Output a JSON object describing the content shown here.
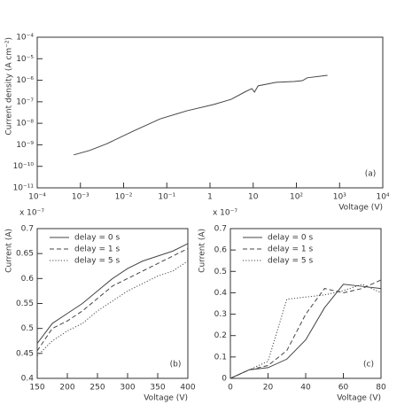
{
  "chart_data": [
    {
      "type": "line",
      "title": "",
      "x_label": "Voltage (V)",
      "y_label": "Current density (A cm⁻²)",
      "annotation": "(a)",
      "log_x": true,
      "log_y": true,
      "xlim": [
        0.0001,
        10000
      ],
      "ylim": [
        1e-11,
        0.0001
      ],
      "xticks": [
        {
          "value": 0.0001,
          "label": "10⁻⁴"
        },
        {
          "value": 0.001,
          "label": "10⁻³"
        },
        {
          "value": 0.01,
          "label": "10⁻²"
        },
        {
          "value": 0.1,
          "label": "10⁻¹"
        },
        1,
        10,
        {
          "value": 100,
          "label": "10²"
        },
        {
          "value": 1000,
          "label": "10³"
        },
        {
          "value": 10000,
          "label": "10⁴"
        }
      ],
      "yticks": [
        {
          "value": 1e-11,
          "label": "10⁻¹¹"
        },
        {
          "value": 1e-10,
          "label": "10⁻¹⁰"
        },
        {
          "value": 1e-09,
          "label": "10⁻⁹"
        },
        {
          "value": 1e-08,
          "label": "10⁻⁸"
        },
        {
          "value": 1e-07,
          "label": "10⁻⁷"
        },
        {
          "value": 1e-06,
          "label": "10⁻⁶"
        },
        {
          "value": 1e-05,
          "label": "10⁻⁵"
        },
        {
          "value": 0.0001,
          "label": "10⁻⁴"
        }
      ],
      "x": [
        0.0007,
        0.0016,
        0.004,
        0.017,
        0.07,
        0.29,
        1.2,
        3.1,
        6.3,
        9.3,
        10.7,
        13,
        34,
        87,
        138,
        178,
        525
      ],
      "series": [
        {
          "color": "#444444",
          "dash": "solid",
          "values": [
            3.4e-10,
            5.4e-10,
            1.1e-09,
            4.4e-09,
            1.6e-08,
            3.8e-08,
            7.4e-08,
            1.3e-07,
            2.8e-07,
            4.1e-07,
            2.8e-07,
            5.5e-07,
            8e-07,
            8.7e-07,
            9.6e-07,
            1.3e-06,
            1.7e-06
          ]
        }
      ]
    },
    {
      "type": "line",
      "x_label": "Voltage (V)",
      "y_label": "Current (A)",
      "annotation": "(b)",
      "y_multiplier": "x 10⁻⁷",
      "legend": "upper left",
      "xlim": [
        150,
        400
      ],
      "ylim": [
        0.4,
        0.7
      ],
      "xticks": [
        150,
        200,
        250,
        300,
        350,
        400
      ],
      "yticks": [
        0.4,
        0.45,
        0.5,
        0.55,
        0.6,
        0.65,
        0.7
      ],
      "x": [
        150,
        175,
        200,
        225,
        250,
        275,
        300,
        325,
        350,
        375,
        400
      ],
      "series": [
        {
          "name": "delay = 0 s",
          "color": "#444444",
          "dash": "solid",
          "values": [
            0.47,
            0.51,
            0.53,
            0.55,
            0.575,
            0.6,
            0.62,
            0.635,
            0.645,
            0.655,
            0.67
          ]
        },
        {
          "name": "delay = 1 s",
          "color": "#444444",
          "dash": "dashed",
          "values": [
            0.455,
            0.5,
            0.515,
            0.535,
            0.56,
            0.585,
            0.6,
            0.615,
            0.63,
            0.645,
            0.66
          ]
        },
        {
          "name": "delay = 5 s",
          "color": "#444444",
          "dash": "dotted",
          "values": [
            0.445,
            0.475,
            0.495,
            0.51,
            0.535,
            0.555,
            0.575,
            0.59,
            0.605,
            0.615,
            0.635
          ]
        }
      ]
    },
    {
      "type": "line",
      "x_label": "Voltage (V)",
      "y_label": "Current (A)",
      "annotation": "(c)",
      "y_multiplier": "x 10⁻⁷",
      "legend": "upper left",
      "xlim": [
        0,
        80
      ],
      "ylim": [
        0,
        0.7
      ],
      "xticks": [
        0,
        20,
        40,
        60,
        80
      ],
      "yticks": [
        0,
        0.1,
        0.2,
        0.3,
        0.4,
        0.5,
        0.6,
        0.7
      ],
      "x": [
        0,
        10,
        20,
        30,
        40,
        50,
        60,
        70,
        80
      ],
      "series": [
        {
          "name": "delay = 0 s",
          "color": "#444444",
          "dash": "solid",
          "values": [
            0,
            0.04,
            0.05,
            0.09,
            0.18,
            0.33,
            0.44,
            0.43,
            0.42
          ]
        },
        {
          "name": "delay = 1 s",
          "color": "#444444",
          "dash": "dashed",
          "values": [
            0,
            0.04,
            0.06,
            0.13,
            0.3,
            0.42,
            0.4,
            0.42,
            0.46
          ]
        },
        {
          "name": "delay = 5 s",
          "color": "#444444",
          "dash": "dotted",
          "values": [
            0,
            0.04,
            0.08,
            0.37,
            0.38,
            0.39,
            0.41,
            0.44,
            0.4
          ]
        }
      ]
    }
  ]
}
